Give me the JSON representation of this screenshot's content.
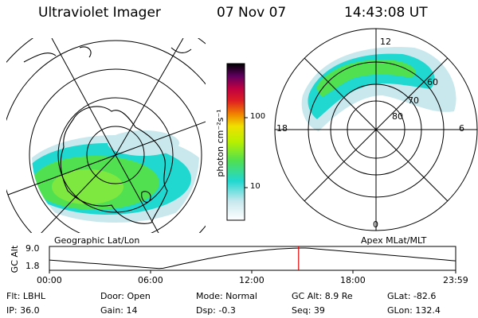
{
  "header": {
    "instrument": "Ultraviolet Imager",
    "date": "07 Nov 07",
    "time": "14:43:08 UT"
  },
  "colorbar": {
    "unit_label": "photon cm⁻²s⁻¹",
    "ticks": [
      "100",
      "10"
    ],
    "scale": "log"
  },
  "panels": {
    "left_title": "Geographic Lat/Lon",
    "right_title": "Apex MLat/MLT",
    "mlt_labels": {
      "top": "12",
      "left": "18",
      "right": "6",
      "bottom": "0"
    },
    "mlat_labels": [
      "60",
      "70",
      "80"
    ]
  },
  "orbit": {
    "ylabel": "GC Alt",
    "ymax": "9.0",
    "ymin": "1.8",
    "x_ticks": [
      "00:00",
      "06:00",
      "12:00",
      "18:00",
      "23:59"
    ],
    "current_time_hours": 14.72,
    "line_color": "#000000",
    "marker_color": "#e00000"
  },
  "info": {
    "flt": "Flt: LBHL",
    "ip": "IP: 36.0",
    "door": "Door: Open",
    "gain": "Gain: 14",
    "mode": "Mode: Normal",
    "dsp": "Dsp:    -0.3",
    "gcalt": "GC Alt: 8.9 Re",
    "seq": "Seq: 39",
    "glat": "GLat: -82.6",
    "glon": "GLon: 132.4"
  }
}
